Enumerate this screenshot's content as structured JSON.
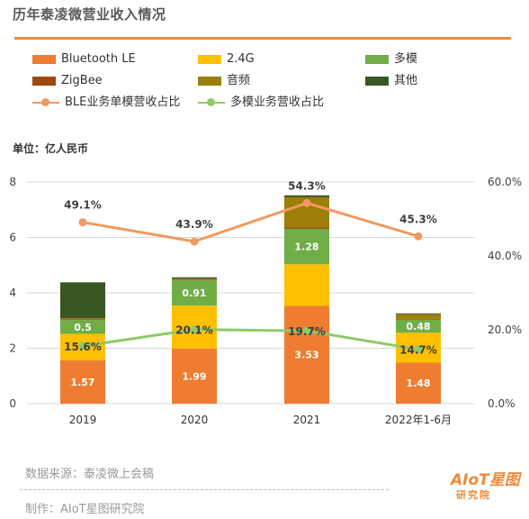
{
  "title": "历年泰凌微营业收入情况",
  "unit_label": "单位：亿人民币",
  "source_text": "数据来源：泰凌微上会稿",
  "maker_text": "制作：AIoT星图研究院",
  "logo": {
    "line1": "AIoT星图",
    "line2": "研究院"
  },
  "colors": {
    "Bluetooth LE": "#ee7d31",
    "2.4G": "#ffc000",
    "多模": "#70ad47",
    "ZigBee": "#9e480e",
    "音频": "#9c7e08",
    "其他": "#385723",
    "BLE业务单模营收占比": "#f09a5e",
    "多模业务营收占比": "#8fca6a",
    "title_rule": "#ef8a3a"
  },
  "legend": [
    {
      "label": "Bluetooth LE",
      "kind": "bar"
    },
    {
      "label": "2.4G",
      "kind": "bar"
    },
    {
      "label": "多模",
      "kind": "bar"
    },
    {
      "label": "ZigBee",
      "kind": "bar"
    },
    {
      "label": "音频",
      "kind": "bar"
    },
    {
      "label": "其他",
      "kind": "bar"
    },
    {
      "label": "BLE业务单模营收占比",
      "kind": "line"
    },
    {
      "label": "多模业务营收占比",
      "kind": "line"
    }
  ],
  "chart_data": {
    "type": "bar",
    "stacked": true,
    "categories": [
      "2019",
      "2020",
      "2021",
      "2022年1-6月"
    ],
    "y_left": {
      "range": [
        0,
        8
      ],
      "ticks": [
        "0",
        "2",
        "4",
        "6",
        "8"
      ]
    },
    "y_right": {
      "range": [
        0,
        60
      ],
      "ticks": [
        "0.0%",
        "20.0%",
        "40.0%",
        "60.0%"
      ]
    },
    "grid": true,
    "series": [
      {
        "name": "Bluetooth LE",
        "values": [
          1.57,
          1.99,
          3.53,
          1.48
        ],
        "labels": [
          "1.57",
          "1.99",
          "3.53",
          "1.48"
        ]
      },
      {
        "name": "2.4G",
        "values": [
          0.95,
          1.55,
          1.5,
          1.08
        ],
        "labels": [
          "",
          "",
          "",
          ""
        ]
      },
      {
        "name": "多模",
        "values": [
          0.5,
          0.91,
          1.28,
          0.48
        ],
        "labels": [
          "0.5",
          "0.91",
          "1.28",
          ""
        ]
      },
      {
        "name": "ZigBee",
        "values": [
          0.03,
          0.03,
          0.05,
          0.02
        ],
        "labels": [
          "",
          "",
          "",
          ""
        ]
      },
      {
        "name": "音频",
        "values": [
          0.03,
          0.03,
          1.09,
          0.17
        ],
        "labels": [
          "",
          "",
          "",
          ""
        ]
      },
      {
        "name": "其他",
        "values": [
          1.3,
          0.05,
          0.07,
          0.03
        ],
        "labels": [
          "",
          "",
          "",
          ""
        ]
      }
    ],
    "extra_labels": [
      {
        "category": "2022年1-6月",
        "text": "0.48"
      }
    ],
    "lines": [
      {
        "name": "BLE业务单模营收占比",
        "axis": "right",
        "values": [
          49.1,
          43.9,
          54.3,
          45.3
        ],
        "labels": [
          "49.1%",
          "43.9%",
          "54.3%",
          "45.3%"
        ]
      },
      {
        "name": "多模业务营收占比",
        "axis": "right",
        "values": [
          15.6,
          20.1,
          19.7,
          14.7
        ],
        "labels": [
          "15.6%",
          "20.1%",
          "19.7%",
          "14.7%"
        ]
      }
    ]
  }
}
